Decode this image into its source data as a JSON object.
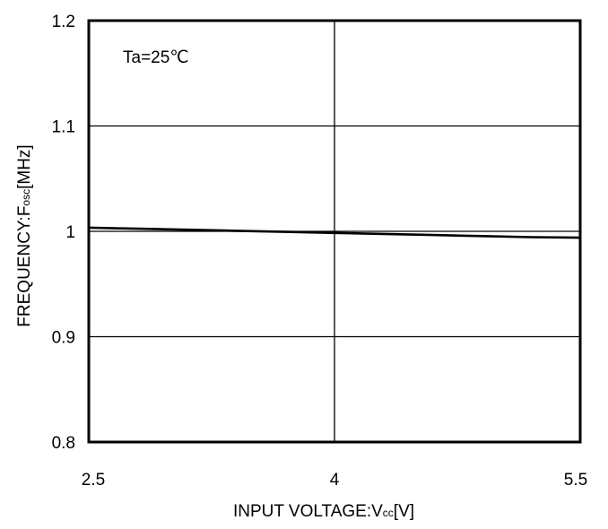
{
  "chart_data": {
    "type": "line",
    "title": "",
    "xlabel": {
      "main": "INPUT VOLTAGE:V",
      "subscript": "cc",
      "unit": "[V]"
    },
    "ylabel": {
      "main": "FREQUENCY:F",
      "subscript": "osc",
      "unit": "[MHz]"
    },
    "xlim": [
      2.5,
      5.5
    ],
    "ylim": [
      0.8,
      1.2
    ],
    "xticks": [
      2.5,
      4,
      5.5
    ],
    "xtick_labels": [
      "2.5",
      "4",
      "5.5"
    ],
    "yticks": [
      0.8,
      0.9,
      1.0,
      1.1,
      1.2
    ],
    "ytick_labels": [
      "0.8",
      "0.9",
      "1",
      "1.1",
      "1.2"
    ],
    "grid": true,
    "annotation": "Ta=25℃",
    "series": [
      {
        "x": [
          2.5,
          2.8,
          3.1,
          3.4,
          3.7,
          4.0,
          4.3,
          4.6,
          4.9,
          5.2,
          5.5
        ],
        "y": [
          1.0035,
          1.0025,
          1.0015,
          1.0005,
          0.9995,
          0.9985,
          0.9975,
          0.9965,
          0.9955,
          0.9945,
          0.994
        ],
        "color": "#000000"
      }
    ]
  }
}
